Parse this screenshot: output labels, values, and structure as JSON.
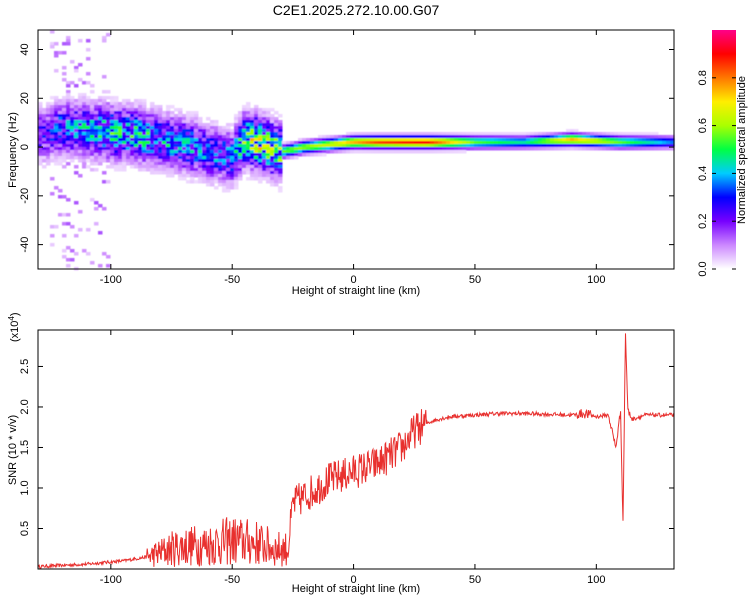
{
  "title": "C2E1.2025.272.10.00.G07",
  "colors": {
    "background": "#ffffff",
    "axis": "#000000",
    "snr_line": "#e8302e"
  },
  "chart_data": [
    {
      "type": "heatmap",
      "name": "spectrogram",
      "xlabel": "Height of straight line (km)",
      "ylabel": "Frequency (Hz)",
      "xlim": [
        -130,
        132
      ],
      "ylim": [
        -50,
        48
      ],
      "xticks": [
        -100,
        -50,
        0,
        50,
        100
      ],
      "yticks": [
        -40,
        -20,
        0,
        20,
        40
      ],
      "colorbar": {
        "label": "Normalized spectral amplitude",
        "range": [
          0,
          1
        ],
        "ticks": [
          "0.0",
          "0.2",
          "0.4",
          "0.6",
          "0.8"
        ],
        "colormap": [
          "#ffffff",
          "#cc88ff",
          "#7700ff",
          "#0000ff",
          "#00ccff",
          "#00ff44",
          "#aaff00",
          "#ffee00",
          "#ff7700",
          "#ff0000",
          "#ff0088"
        ]
      },
      "ridge": [
        {
          "x": -128,
          "y": 5,
          "amp": 0.25
        },
        {
          "x": -120,
          "y": 8,
          "amp": 0.35
        },
        {
          "x": -110,
          "y": 7,
          "amp": 0.4
        },
        {
          "x": -100,
          "y": 6,
          "amp": 0.45
        },
        {
          "x": -90,
          "y": 5,
          "amp": 0.45
        },
        {
          "x": -80,
          "y": 3,
          "amp": 0.4
        },
        {
          "x": -70,
          "y": 1,
          "amp": 0.4
        },
        {
          "x": -60,
          "y": -2,
          "amp": 0.35
        },
        {
          "x": -50,
          "y": -4,
          "amp": 0.35
        },
        {
          "x": -45,
          "y": 3,
          "amp": 0.55
        },
        {
          "x": -40,
          "y": 2,
          "amp": 0.6
        },
        {
          "x": -30,
          "y": -2,
          "amp": 0.55
        },
        {
          "x": -20,
          "y": 0,
          "amp": 0.6
        },
        {
          "x": -10,
          "y": 1,
          "amp": 0.65
        },
        {
          "x": 0,
          "y": 2,
          "amp": 0.75
        },
        {
          "x": 10,
          "y": 2,
          "amp": 0.85
        },
        {
          "x": 30,
          "y": 2,
          "amp": 0.9
        },
        {
          "x": 50,
          "y": 2,
          "amp": 0.55
        },
        {
          "x": 70,
          "y": 2,
          "amp": 0.45
        },
        {
          "x": 90,
          "y": 3,
          "amp": 0.75
        },
        {
          "x": 110,
          "y": 2,
          "amp": 0.55
        },
        {
          "x": 132,
          "y": 2,
          "amp": 0.35
        }
      ]
    },
    {
      "type": "line",
      "name": "snr",
      "xlabel": "Height of straight line (km)",
      "ylabel": "SNR (10 * v/v)",
      "yscale_label": "(x10",
      "yscale_exp": "4",
      "yscale_close": ")",
      "xlim": [
        -130,
        132
      ],
      "ylim": [
        0,
        2.95
      ],
      "xticks": [
        -100,
        -50,
        0,
        50,
        100
      ],
      "yticks": [
        "0.5",
        "1.0",
        "1.5",
        "2.0",
        "2.5"
      ],
      "series": [
        {
          "name": "SNR",
          "x": [
            -130,
            -110,
            -95,
            -85,
            -80,
            -75,
            -70,
            -60,
            -50,
            -40,
            -32,
            -27,
            -25,
            -20,
            -10,
            0,
            10,
            20,
            25,
            30,
            35,
            40,
            50,
            60,
            70,
            80,
            90,
            95,
            100,
            105,
            108,
            110,
            111,
            112,
            113,
            115,
            120,
            132
          ],
          "y": [
            0.03,
            0.06,
            0.1,
            0.15,
            0.2,
            0.25,
            0.28,
            0.3,
            0.35,
            0.32,
            0.25,
            0.25,
            0.8,
            0.9,
            1.1,
            1.2,
            1.3,
            1.5,
            1.7,
            1.8,
            1.85,
            1.88,
            1.9,
            1.92,
            1.92,
            1.91,
            1.9,
            1.92,
            1.88,
            1.9,
            1.5,
            1.95,
            0.55,
            2.9,
            1.95,
            1.85,
            1.9,
            1.9
          ]
        }
      ]
    }
  ]
}
